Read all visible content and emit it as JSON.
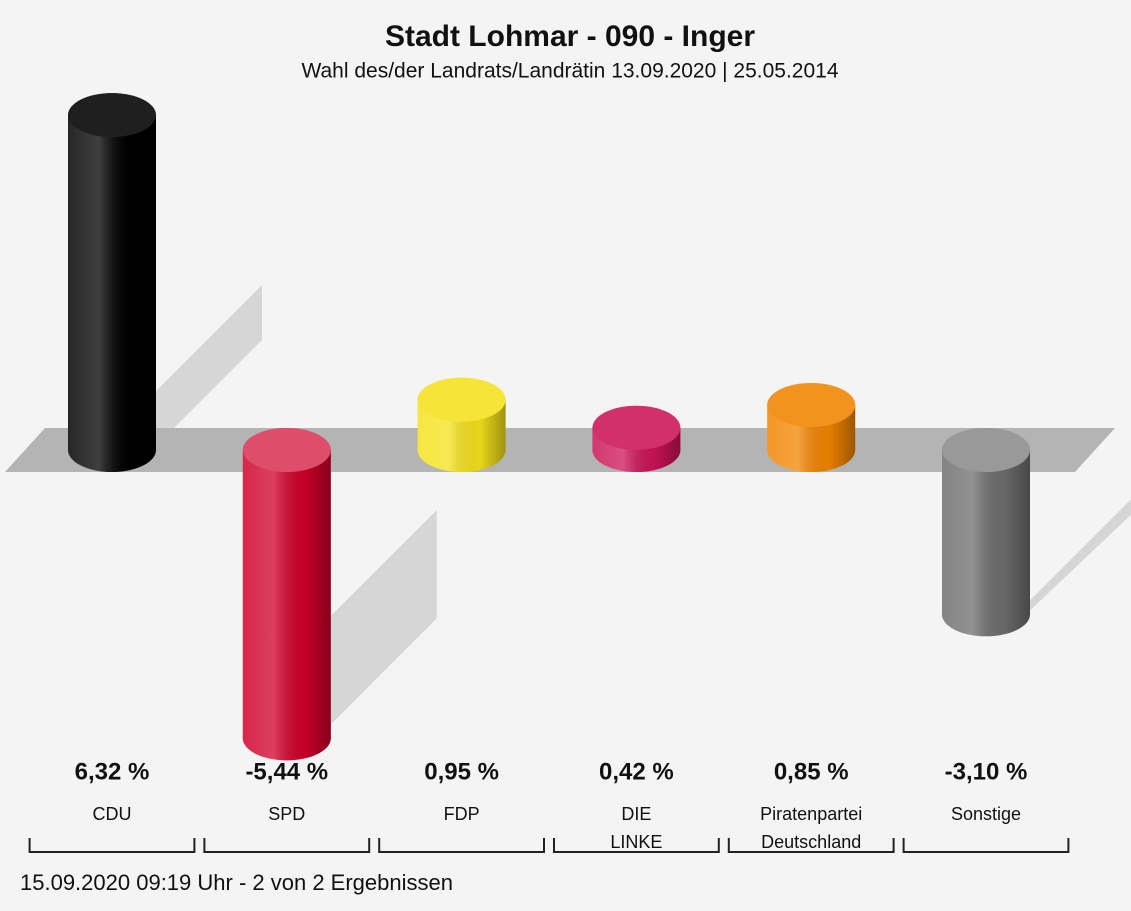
{
  "chart_data": {
    "type": "bar",
    "title": "Stadt Lohmar - 090 - Inger",
    "subtitle": "Wahl des/der Landrats/Landrätin 13.09.2020  | 25.05.2014",
    "categories": [
      "CDU",
      "SPD",
      "FDP",
      "DIE LINKE",
      "Piratenpartei Deutschland",
      "Sonstige"
    ],
    "values": [
      6.32,
      -5.44,
      0.95,
      0.42,
      0.85,
      -3.1
    ],
    "value_labels": [
      "6,32 %",
      "-5,44 %",
      "0,95 %",
      "0,42 %",
      "0,85 %",
      "-3,10 %"
    ],
    "colors": [
      "#000000",
      "#d0002a",
      "#f5e21c",
      "#cc1457",
      "#f28500",
      "#6e6e6e"
    ],
    "footer": "15.09.2020 09:19 Uhr - 2 von 2 Ergebnissen"
  }
}
